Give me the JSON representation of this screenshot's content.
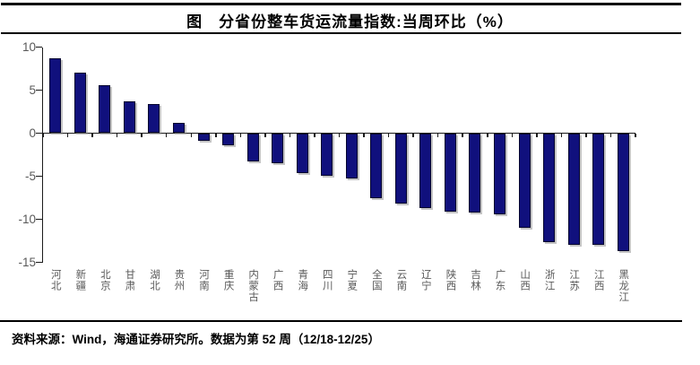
{
  "header": {
    "title": "图　分省份整车货运流量指数:当周环比（%）"
  },
  "footer": {
    "source": "资料来源：Wind，海通证券研究所。数据为第 52 周（12/18-12/25）"
  },
  "colors": {
    "bar": "#10107d",
    "bar_border": "#05052e",
    "axis": "#1a1a1a",
    "tick_label": "#595959",
    "rule": "#000000"
  },
  "chart_data": {
    "type": "bar",
    "title": "图　分省份整车货运流量指数:当周环比（%）",
    "xlabel": "",
    "ylabel": "",
    "ylim": [
      -15,
      10
    ],
    "yticks": [
      10,
      5,
      0,
      -5,
      -10,
      -15
    ],
    "grid": false,
    "legend": false,
    "bar_color": "#10107d",
    "categories": [
      "河北",
      "新疆",
      "北京",
      "甘肃",
      "湖北",
      "贵州",
      "河南",
      "重庆",
      "内蒙古",
      "广西",
      "青海",
      "四川",
      "宁夏",
      "全国",
      "云南",
      "辽宁",
      "陕西",
      "吉林",
      "广东",
      "山西",
      "浙江",
      "江苏",
      "江西",
      "黑龙江"
    ],
    "values": [
      8.7,
      7.0,
      5.6,
      3.7,
      3.4,
      1.2,
      -0.8,
      -1.3,
      -3.2,
      -3.4,
      -4.6,
      -4.9,
      -5.2,
      -7.5,
      -8.1,
      -8.6,
      -9.0,
      -9.1,
      -9.4,
      -10.9,
      -12.6,
      -12.9,
      -12.9,
      -13.6
    ]
  }
}
